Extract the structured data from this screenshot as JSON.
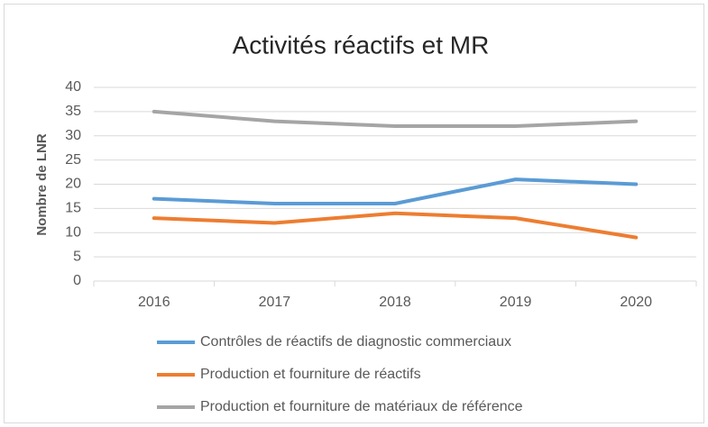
{
  "chart_data": {
    "type": "line",
    "title": "Activités réactifs et MR",
    "y_label": "Nombre de LNR",
    "categories": [
      "2016",
      "2017",
      "2018",
      "2019",
      "2020"
    ],
    "series": [
      {
        "name": "Contrôles de réactifs de diagnostic commerciaux",
        "color": "#5b9bd5",
        "values": [
          17,
          16,
          16,
          21,
          20
        ]
      },
      {
        "name": "Production et fourniture de réactifs",
        "color": "#ed7d31",
        "values": [
          13,
          12,
          14,
          13,
          9
        ]
      },
      {
        "name": "Production et fourniture de matériaux de référence",
        "color": "#a5a5a5",
        "values": [
          35,
          33,
          32,
          32,
          33
        ]
      }
    ],
    "ylim": [
      0,
      40
    ],
    "yticks": [
      0,
      5,
      10,
      15,
      20,
      25,
      30,
      35,
      40
    ],
    "grid": true,
    "legend": "bottom"
  }
}
